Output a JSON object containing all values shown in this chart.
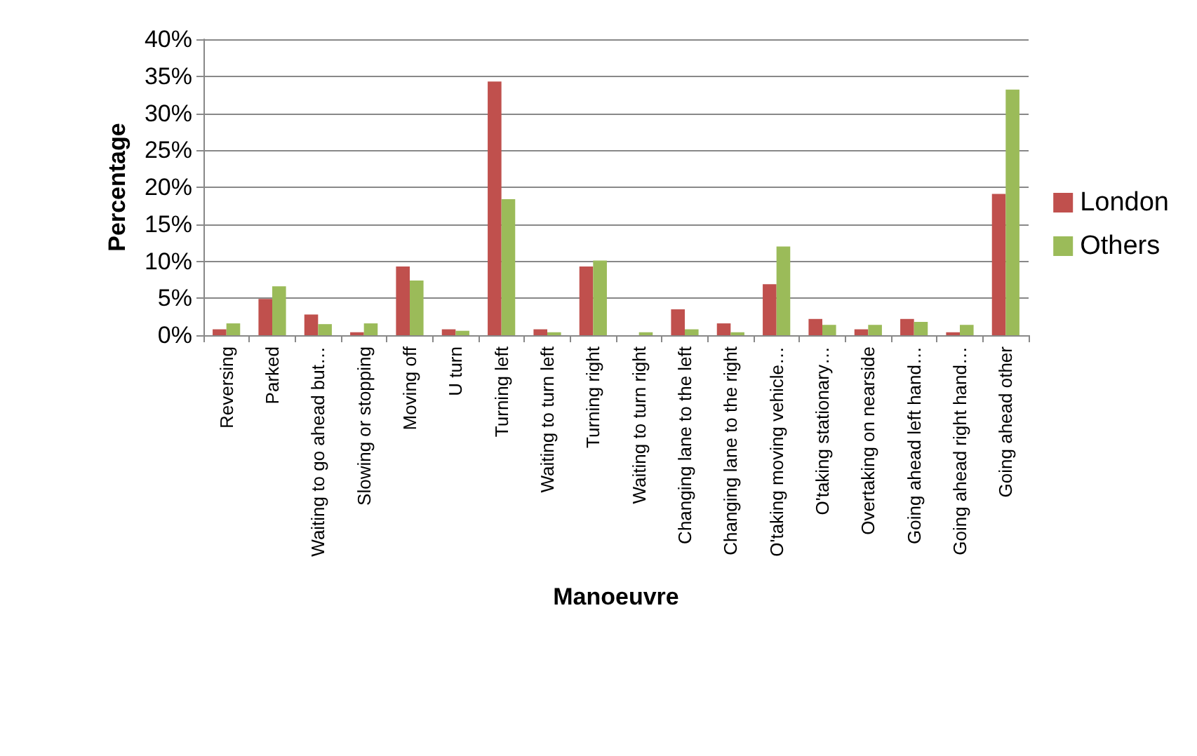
{
  "chart_data": {
    "type": "bar",
    "xlabel": "Manoeuvre",
    "ylabel": "Percentage",
    "categories": [
      "Reversing",
      "Parked",
      "Waiting to go ahead but…",
      "Slowing or stopping",
      "Moving off",
      "U turn",
      "Turning left",
      "Waiting to turn left",
      "Turning right",
      "Waiting to turn right",
      "Changing lane to the left",
      "Changing lane to the right",
      "O'taking moving vehicle…",
      "O'taking stationary…",
      "Overtaking on nearside",
      "Going ahead left hand…",
      "Going ahead right hand…",
      "Going ahead other"
    ],
    "series": [
      {
        "name": "London",
        "color": "#c0504d",
        "values": [
          0.8,
          4.9,
          2.8,
          0.4,
          9.3,
          0.8,
          34.3,
          0.8,
          9.3,
          0,
          3.5,
          1.6,
          6.9,
          2.2,
          0.8,
          2.2,
          0.4,
          19.1
        ]
      },
      {
        "name": "Others",
        "color": "#9bbb59",
        "values": [
          1.6,
          6.6,
          1.5,
          1.6,
          7.4,
          0.6,
          18.4,
          0.4,
          10.1,
          0.4,
          0.8,
          0.4,
          12.0,
          1.4,
          1.4,
          1.8,
          1.4,
          33.2
        ]
      }
    ],
    "ylim": [
      0,
      40
    ],
    "yticks": [
      {
        "value": 0,
        "label": "0%"
      },
      {
        "value": 5,
        "label": "5%"
      },
      {
        "value": 10,
        "label": "10%"
      },
      {
        "value": 15,
        "label": "15%"
      },
      {
        "value": 20,
        "label": "20%"
      },
      {
        "value": 25,
        "label": "25%"
      },
      {
        "value": 30,
        "label": "30%"
      },
      {
        "value": 35,
        "label": "35%"
      },
      {
        "value": 40,
        "label": "40%"
      }
    ],
    "grid": "y",
    "legend": "right"
  }
}
